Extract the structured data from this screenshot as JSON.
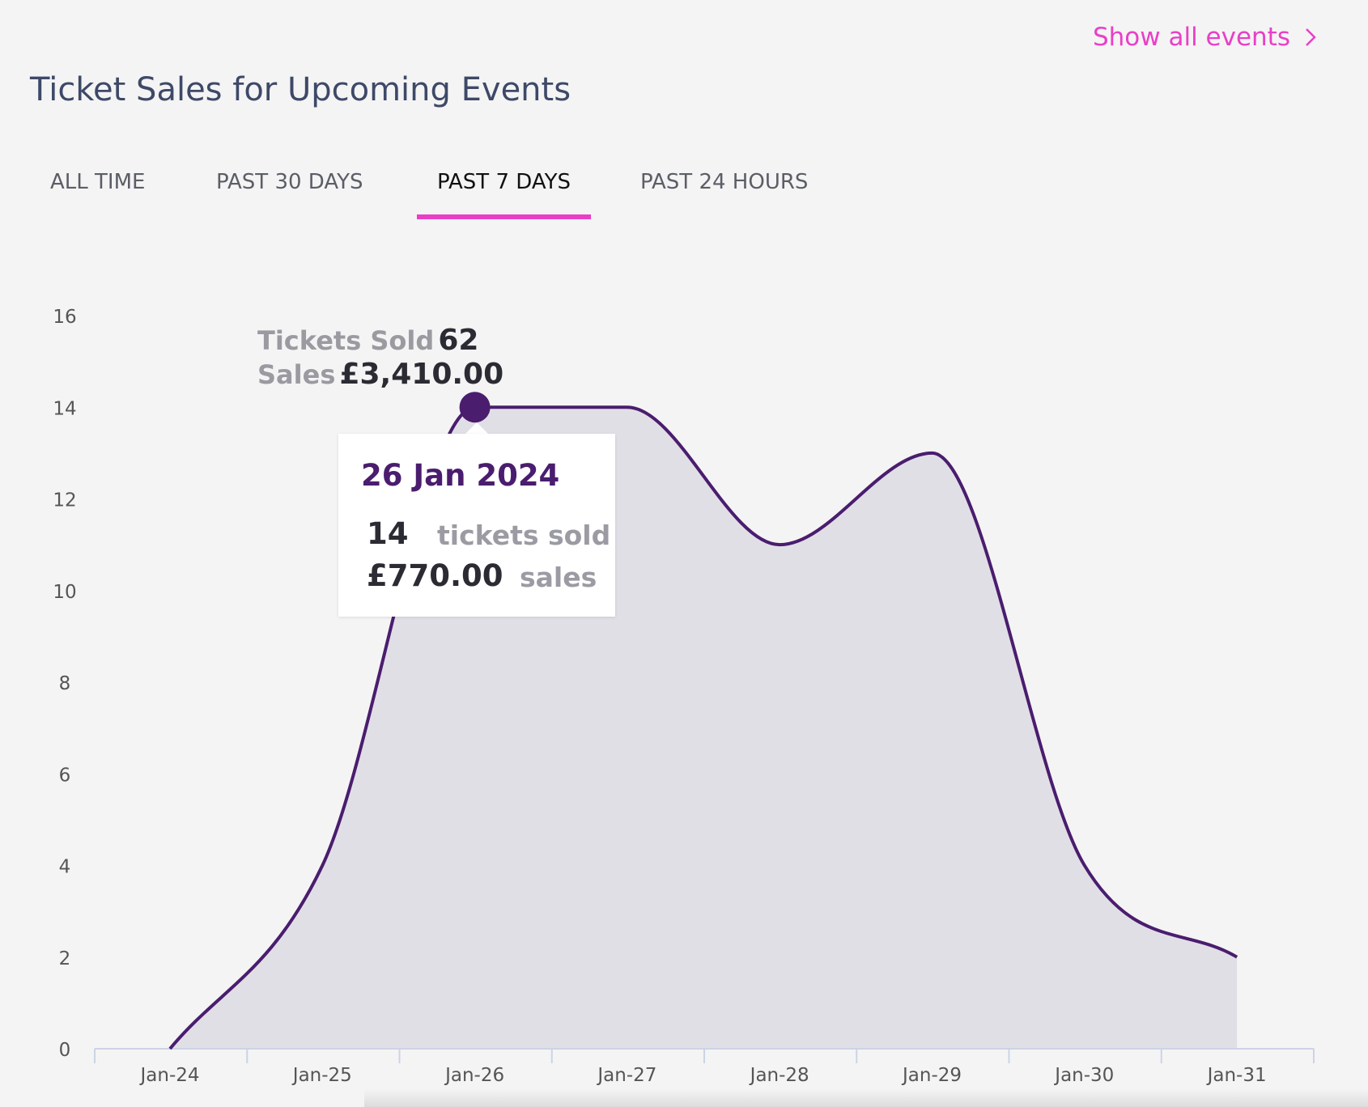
{
  "header": {
    "title": "Ticket Sales for Upcoming Events",
    "show_all_label": "Show all events"
  },
  "tabs": [
    {
      "label": "ALL TIME",
      "active": false
    },
    {
      "label": "PAST 30 DAYS",
      "active": false
    },
    {
      "label": "PAST 7 DAYS",
      "active": true
    },
    {
      "label": "PAST 24 HOURS",
      "active": false
    }
  ],
  "summary": {
    "tickets_label": "Tickets Sold",
    "tickets_value": "62",
    "sales_label": "Sales",
    "sales_value": "£3,410.00"
  },
  "tooltip": {
    "date": "26 Jan 2024",
    "tickets_value": "14",
    "tickets_label": "tickets sold",
    "sales_value": "£770.00",
    "sales_label": "sales"
  },
  "colors": {
    "accent": "#e93fc7",
    "line": "#4a1d6e",
    "area": "#e1dfe6",
    "title": "#3e4968"
  },
  "chart_data": {
    "type": "area",
    "categories": [
      "Jan-24",
      "Jan-25",
      "Jan-26",
      "Jan-27",
      "Jan-28",
      "Jan-29",
      "Jan-30",
      "Jan-31"
    ],
    "series": [
      {
        "values": [
          0,
          4,
          14,
          14,
          11,
          13,
          4,
          2
        ]
      }
    ],
    "ylim": [
      0,
      16
    ],
    "yticks": [
      0,
      2,
      4,
      6,
      8,
      10,
      12,
      14,
      16
    ],
    "highlight_index": 2,
    "grid": false,
    "legend": "none"
  }
}
